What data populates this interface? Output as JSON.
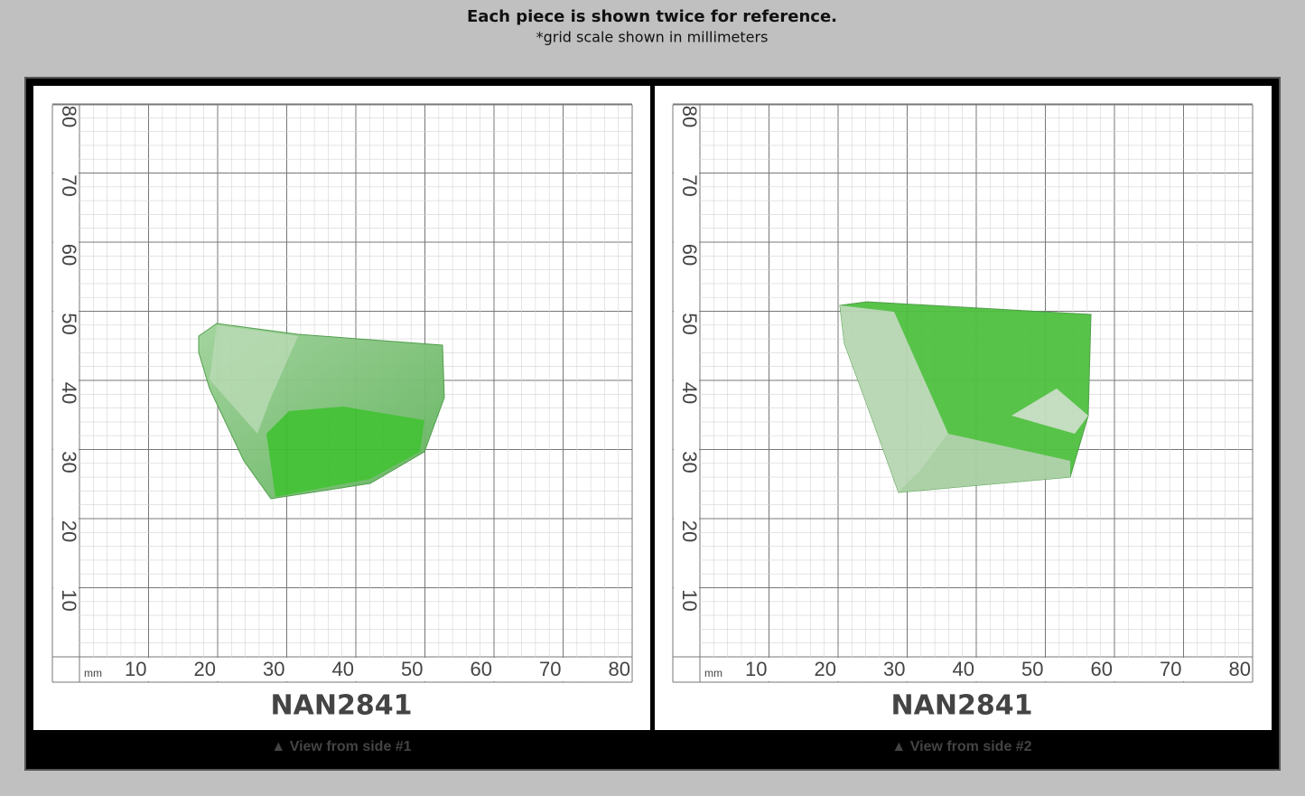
{
  "header": {
    "title": "Each piece is shown twice for reference.",
    "subtitle": "*grid scale shown in millimeters"
  },
  "panels": [
    {
      "unit": "mm",
      "x_labels": [
        "10",
        "20",
        "30",
        "40",
        "50",
        "60",
        "70",
        "80"
      ],
      "y_labels": [
        "10",
        "20",
        "30",
        "40",
        "50",
        "60",
        "70",
        "80"
      ],
      "code": "NAN2841",
      "caption": "▲ View from side #1"
    },
    {
      "unit": "mm",
      "x_labels": [
        "10",
        "20",
        "30",
        "40",
        "50",
        "60",
        "70",
        "80"
      ],
      "y_labels": [
        "10",
        "20",
        "30",
        "40",
        "50",
        "60",
        "70",
        "80"
      ],
      "code": "NAN2841",
      "caption": "▲ View from side #2"
    }
  ]
}
